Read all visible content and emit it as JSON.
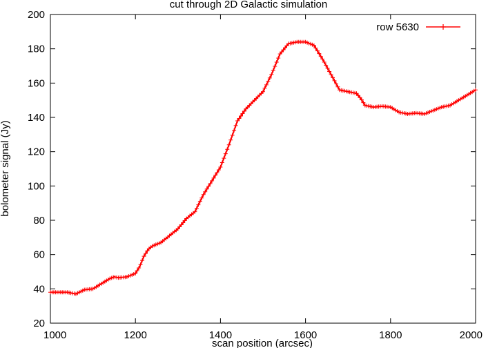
{
  "chart_data": {
    "type": "line",
    "title": "cut through 2D Galactic simulation",
    "xlabel": "scan position (arcsec)",
    "ylabel": "bolometer signal (Jy)",
    "xlim": [
      1000,
      2000
    ],
    "ylim": [
      20,
      200
    ],
    "x_ticks": [
      1000,
      1200,
      1400,
      1600,
      1800,
      2000
    ],
    "y_ticks": [
      20,
      40,
      60,
      80,
      100,
      120,
      140,
      160,
      180,
      200
    ],
    "grid": false,
    "legend_position": "top-right",
    "series": [
      {
        "name": "row 5630",
        "color": "#ff0000",
        "marker": "plus",
        "x": [
          1000,
          1020,
          1040,
          1060,
          1080,
          1100,
          1120,
          1140,
          1150,
          1160,
          1180,
          1200,
          1210,
          1220,
          1230,
          1240,
          1260,
          1280,
          1300,
          1320,
          1340,
          1350,
          1360,
          1380,
          1400,
          1420,
          1440,
          1460,
          1480,
          1500,
          1520,
          1540,
          1560,
          1580,
          1600,
          1620,
          1640,
          1660,
          1680,
          1700,
          1720,
          1730,
          1740,
          1760,
          1780,
          1800,
          1820,
          1840,
          1860,
          1880,
          1900,
          1920,
          1940,
          1960,
          1980,
          2000
        ],
        "y": [
          38,
          38,
          38,
          37,
          39.5,
          40,
          43,
          46,
          47,
          46.5,
          47,
          49,
          53,
          59,
          63,
          65,
          67,
          71,
          75,
          81,
          85,
          90,
          95,
          103,
          111,
          124,
          138,
          145,
          150,
          155,
          165,
          177,
          183,
          184,
          184,
          182,
          174,
          165,
          156,
          155,
          154,
          151,
          147,
          146,
          146.5,
          146,
          143,
          142,
          142.5,
          142,
          144,
          146,
          147,
          150,
          153,
          156
        ]
      }
    ]
  }
}
